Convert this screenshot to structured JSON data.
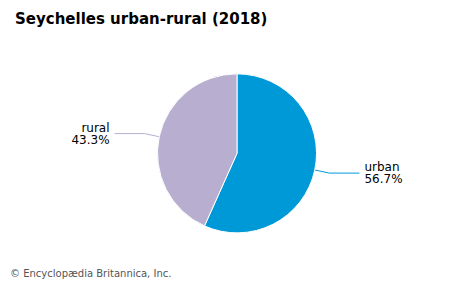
{
  "chart_data": {
    "type": "pie",
    "title": "Seychelles urban-rural (2018)",
    "categories": [
      "urban",
      "rural"
    ],
    "values": [
      56.7,
      43.3
    ],
    "value_labels": [
      "56.7%",
      "43.3%"
    ],
    "data_labels": true,
    "colors": [
      "#0099d8",
      "#b8afd0"
    ],
    "annotations": [
      "© Encyclopædia Britannica, Inc."
    ]
  }
}
